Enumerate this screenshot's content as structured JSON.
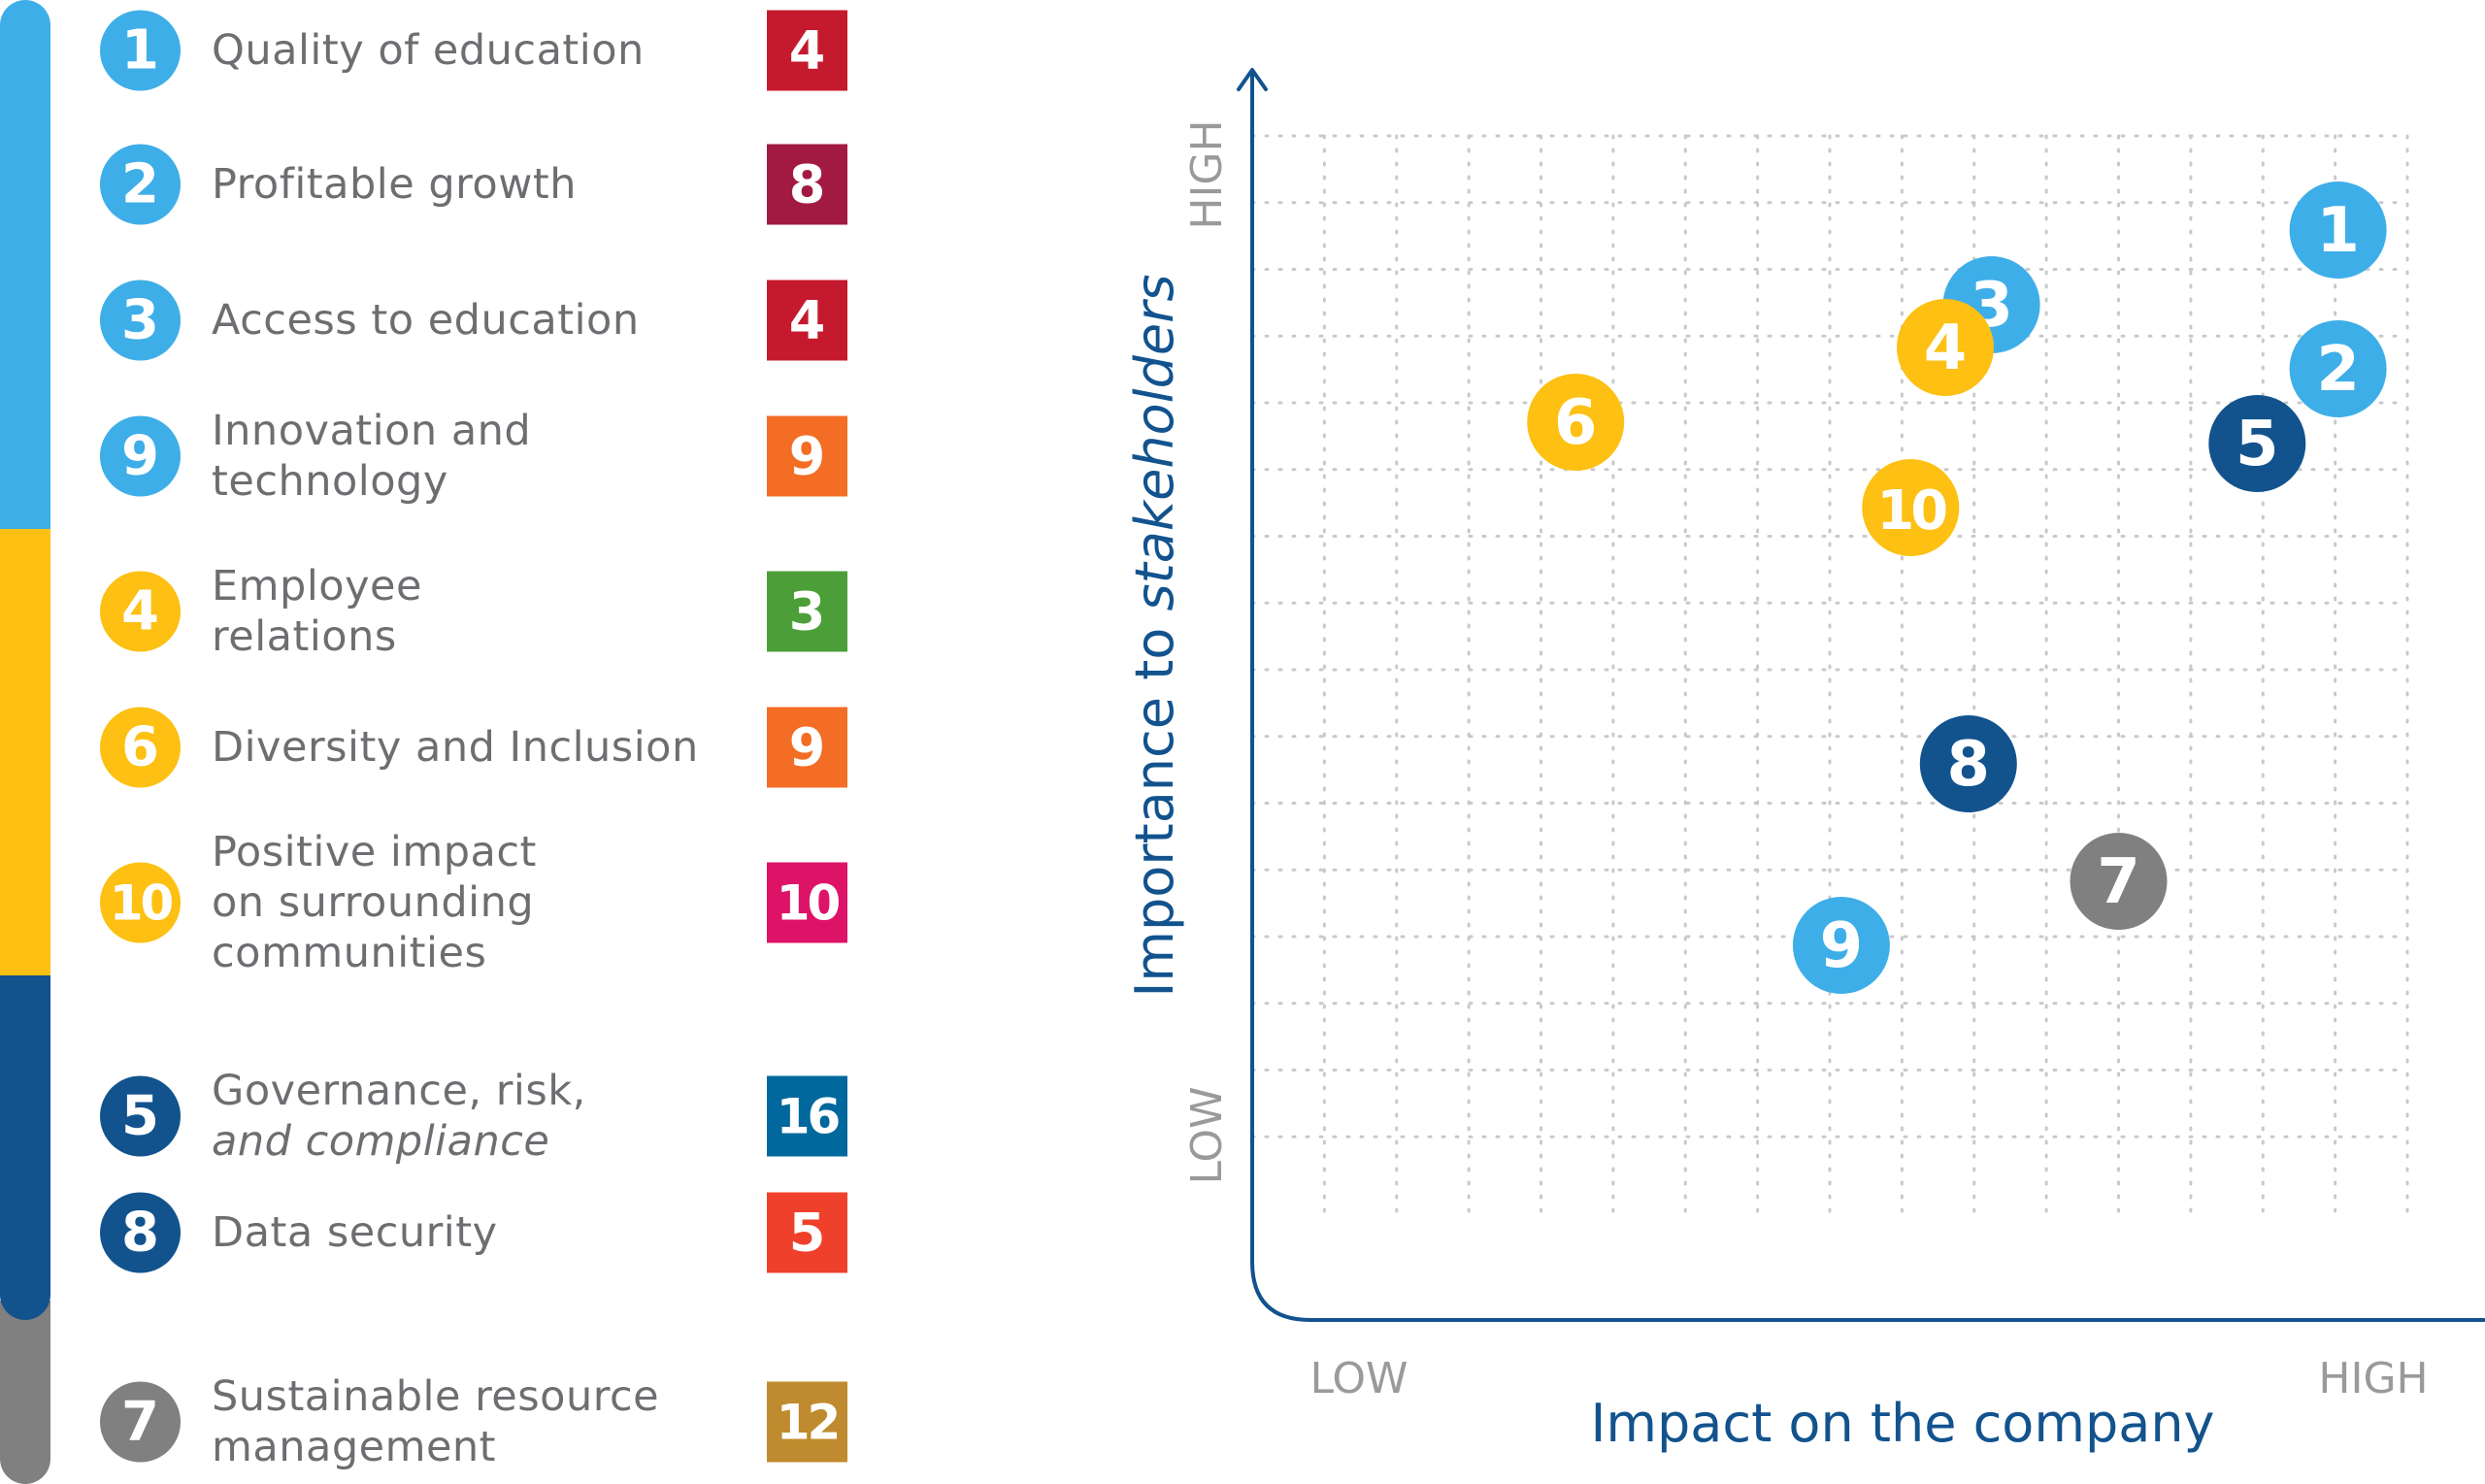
{
  "legend": [
    {
      "num": "1",
      "label_lines": [
        "Quality of education"
      ],
      "sdg": "4",
      "circle_color": "#3eaee8",
      "sdg_color": "#c5192d"
    },
    {
      "num": "2",
      "label_lines": [
        "Profitable growth"
      ],
      "sdg": "8",
      "circle_color": "#3eaee8",
      "sdg_color": "#a21942"
    },
    {
      "num": "3",
      "label_lines": [
        "Access to education"
      ],
      "sdg": "4",
      "circle_color": "#3eaee8",
      "sdg_color": "#c5192d"
    },
    {
      "num": "9",
      "label_lines": [
        "Innovation and",
        "technology"
      ],
      "sdg": "9",
      "circle_color": "#3eaee8",
      "sdg_color": "#f36d25"
    },
    {
      "num": "4",
      "label_lines": [
        "Employee",
        "relations"
      ],
      "sdg": "3",
      "circle_color": "#fdc013",
      "sdg_color": "#4c9f38"
    },
    {
      "num": "6",
      "label_lines": [
        "Diversity and Inclusion"
      ],
      "sdg": "9",
      "circle_color": "#fdc013",
      "sdg_color": "#f36d25"
    },
    {
      "num": "10",
      "label_lines": [
        "Positive impact",
        "on surrounding",
        "communities"
      ],
      "sdg": "10",
      "circle_color": "#fdc013",
      "sdg_color": "#dd1367"
    },
    {
      "num": "5",
      "label_lines": [
        "Governance, risk,",
        "and compliance"
      ],
      "sdg": "16",
      "circle_color": "#12538e",
      "sdg_color": "#00689d"
    },
    {
      "num": "8",
      "label_lines": [
        "Data security"
      ],
      "sdg": "5",
      "circle_color": "#12538e",
      "sdg_color": "#ef402b"
    },
    {
      "num": "7",
      "label_lines": [
        "Sustainable resource",
        "management"
      ],
      "sdg": "12",
      "circle_color": "#808080",
      "sdg_color": "#bf8b2e"
    }
  ],
  "chart_data": {
    "type": "scatter",
    "xlabel": "Impact on the company",
    "ylabel_prefix": "Importance to ",
    "ylabel_italic": "stakeholders",
    "x_ticks": {
      "low": "LOW",
      "high": "HIGH"
    },
    "y_ticks": {
      "low": "LOW",
      "high": "HIGH"
    },
    "xlim": [
      0,
      1
    ],
    "ylim": [
      0,
      1
    ],
    "grid": true,
    "axis_color": "#12538e",
    "points": [
      {
        "label": "1",
        "x": 0.94,
        "y": 0.93,
        "color": "#3eaee8"
      },
      {
        "label": "2",
        "x": 0.94,
        "y": 0.8,
        "color": "#3eaee8"
      },
      {
        "label": "3",
        "x": 0.64,
        "y": 0.86,
        "color": "#3eaee8"
      },
      {
        "label": "4",
        "x": 0.6,
        "y": 0.82,
        "color": "#fdc013"
      },
      {
        "label": "5",
        "x": 0.87,
        "y": 0.73,
        "color": "#12538e"
      },
      {
        "label": "6",
        "x": 0.28,
        "y": 0.75,
        "color": "#fdc013"
      },
      {
        "label": "10",
        "x": 0.57,
        "y": 0.67,
        "color": "#fdc013"
      },
      {
        "label": "8",
        "x": 0.62,
        "y": 0.43,
        "color": "#12538e"
      },
      {
        "label": "7",
        "x": 0.75,
        "y": 0.32,
        "color": "#808080"
      },
      {
        "label": "9",
        "x": 0.51,
        "y": 0.26,
        "color": "#3eaee8"
      }
    ]
  }
}
